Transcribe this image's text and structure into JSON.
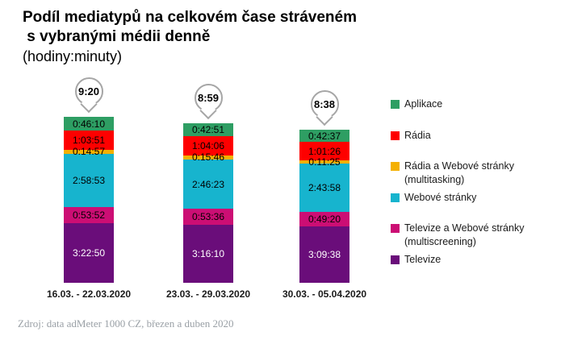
{
  "header": {
    "title_line1": "Podíl mediatypů na celkovém čase stráveném",
    "title_line2": " s vybranými médii denně",
    "subtitle": "(hodiny:minuty)"
  },
  "source": "Zdroj: data adMeter 1000 CZ, březen a duben 2020",
  "chart_data": {
    "type": "stacked-bar",
    "orientation": "vertical",
    "unit": "h:mm:ss",
    "title": "Podíl mediatypů na celkovém čase stráveném s vybranými médii denně (hodiny:minuty)",
    "categories": [
      "16.03. - 22.03.2020",
      "23.03. - 29.03.2020",
      "30.03. - 05.04.2020"
    ],
    "totals": [
      "9:20",
      "8:59",
      "8:38"
    ],
    "legend_position": "right",
    "series": [
      {
        "name": "Aplikace",
        "legend_lines": [
          "Aplikace"
        ],
        "color": "#2e9e63",
        "text_color": "#000000",
        "values": [
          "0:46:10",
          "0:42:51",
          "0:42:37"
        ]
      },
      {
        "name": "Rádia",
        "legend_lines": [
          "Rádia"
        ],
        "color": "#fe0000",
        "text_color": "#000000",
        "values": [
          "1:03:51",
          "1:04:06",
          "1:01:26"
        ]
      },
      {
        "name": "Rádia a Webové stránky (multitasking)",
        "legend_lines": [
          "Rádia a Webové stránky",
          "(multitasking)"
        ],
        "color": "#f4b000",
        "text_color": "#000000",
        "values": [
          "0:14:57",
          "0:15:46",
          "0:11:25"
        ]
      },
      {
        "name": "Webové stránky",
        "legend_lines": [
          "Webové stránky"
        ],
        "color": "#17b4ce",
        "text_color": "#000000",
        "values": [
          "2:58:53",
          "2:46:23",
          "2:43:58"
        ]
      },
      {
        "name": "Televize a Webové stránky (multiscreening)",
        "legend_lines": [
          "Televize a Webové stránky",
          "(multiscreening)"
        ],
        "color": "#cc0e74",
        "text_color": "#000000",
        "values": [
          "0:53:52",
          "0:53:36",
          "0:49:20"
        ]
      },
      {
        "name": "Televize",
        "legend_lines": [
          "Televize"
        ],
        "color": "#6a0d7a",
        "text_color": "#ffffff",
        "values": [
          "3:22:50",
          "3:16:10",
          "3:09:38"
        ]
      }
    ]
  }
}
